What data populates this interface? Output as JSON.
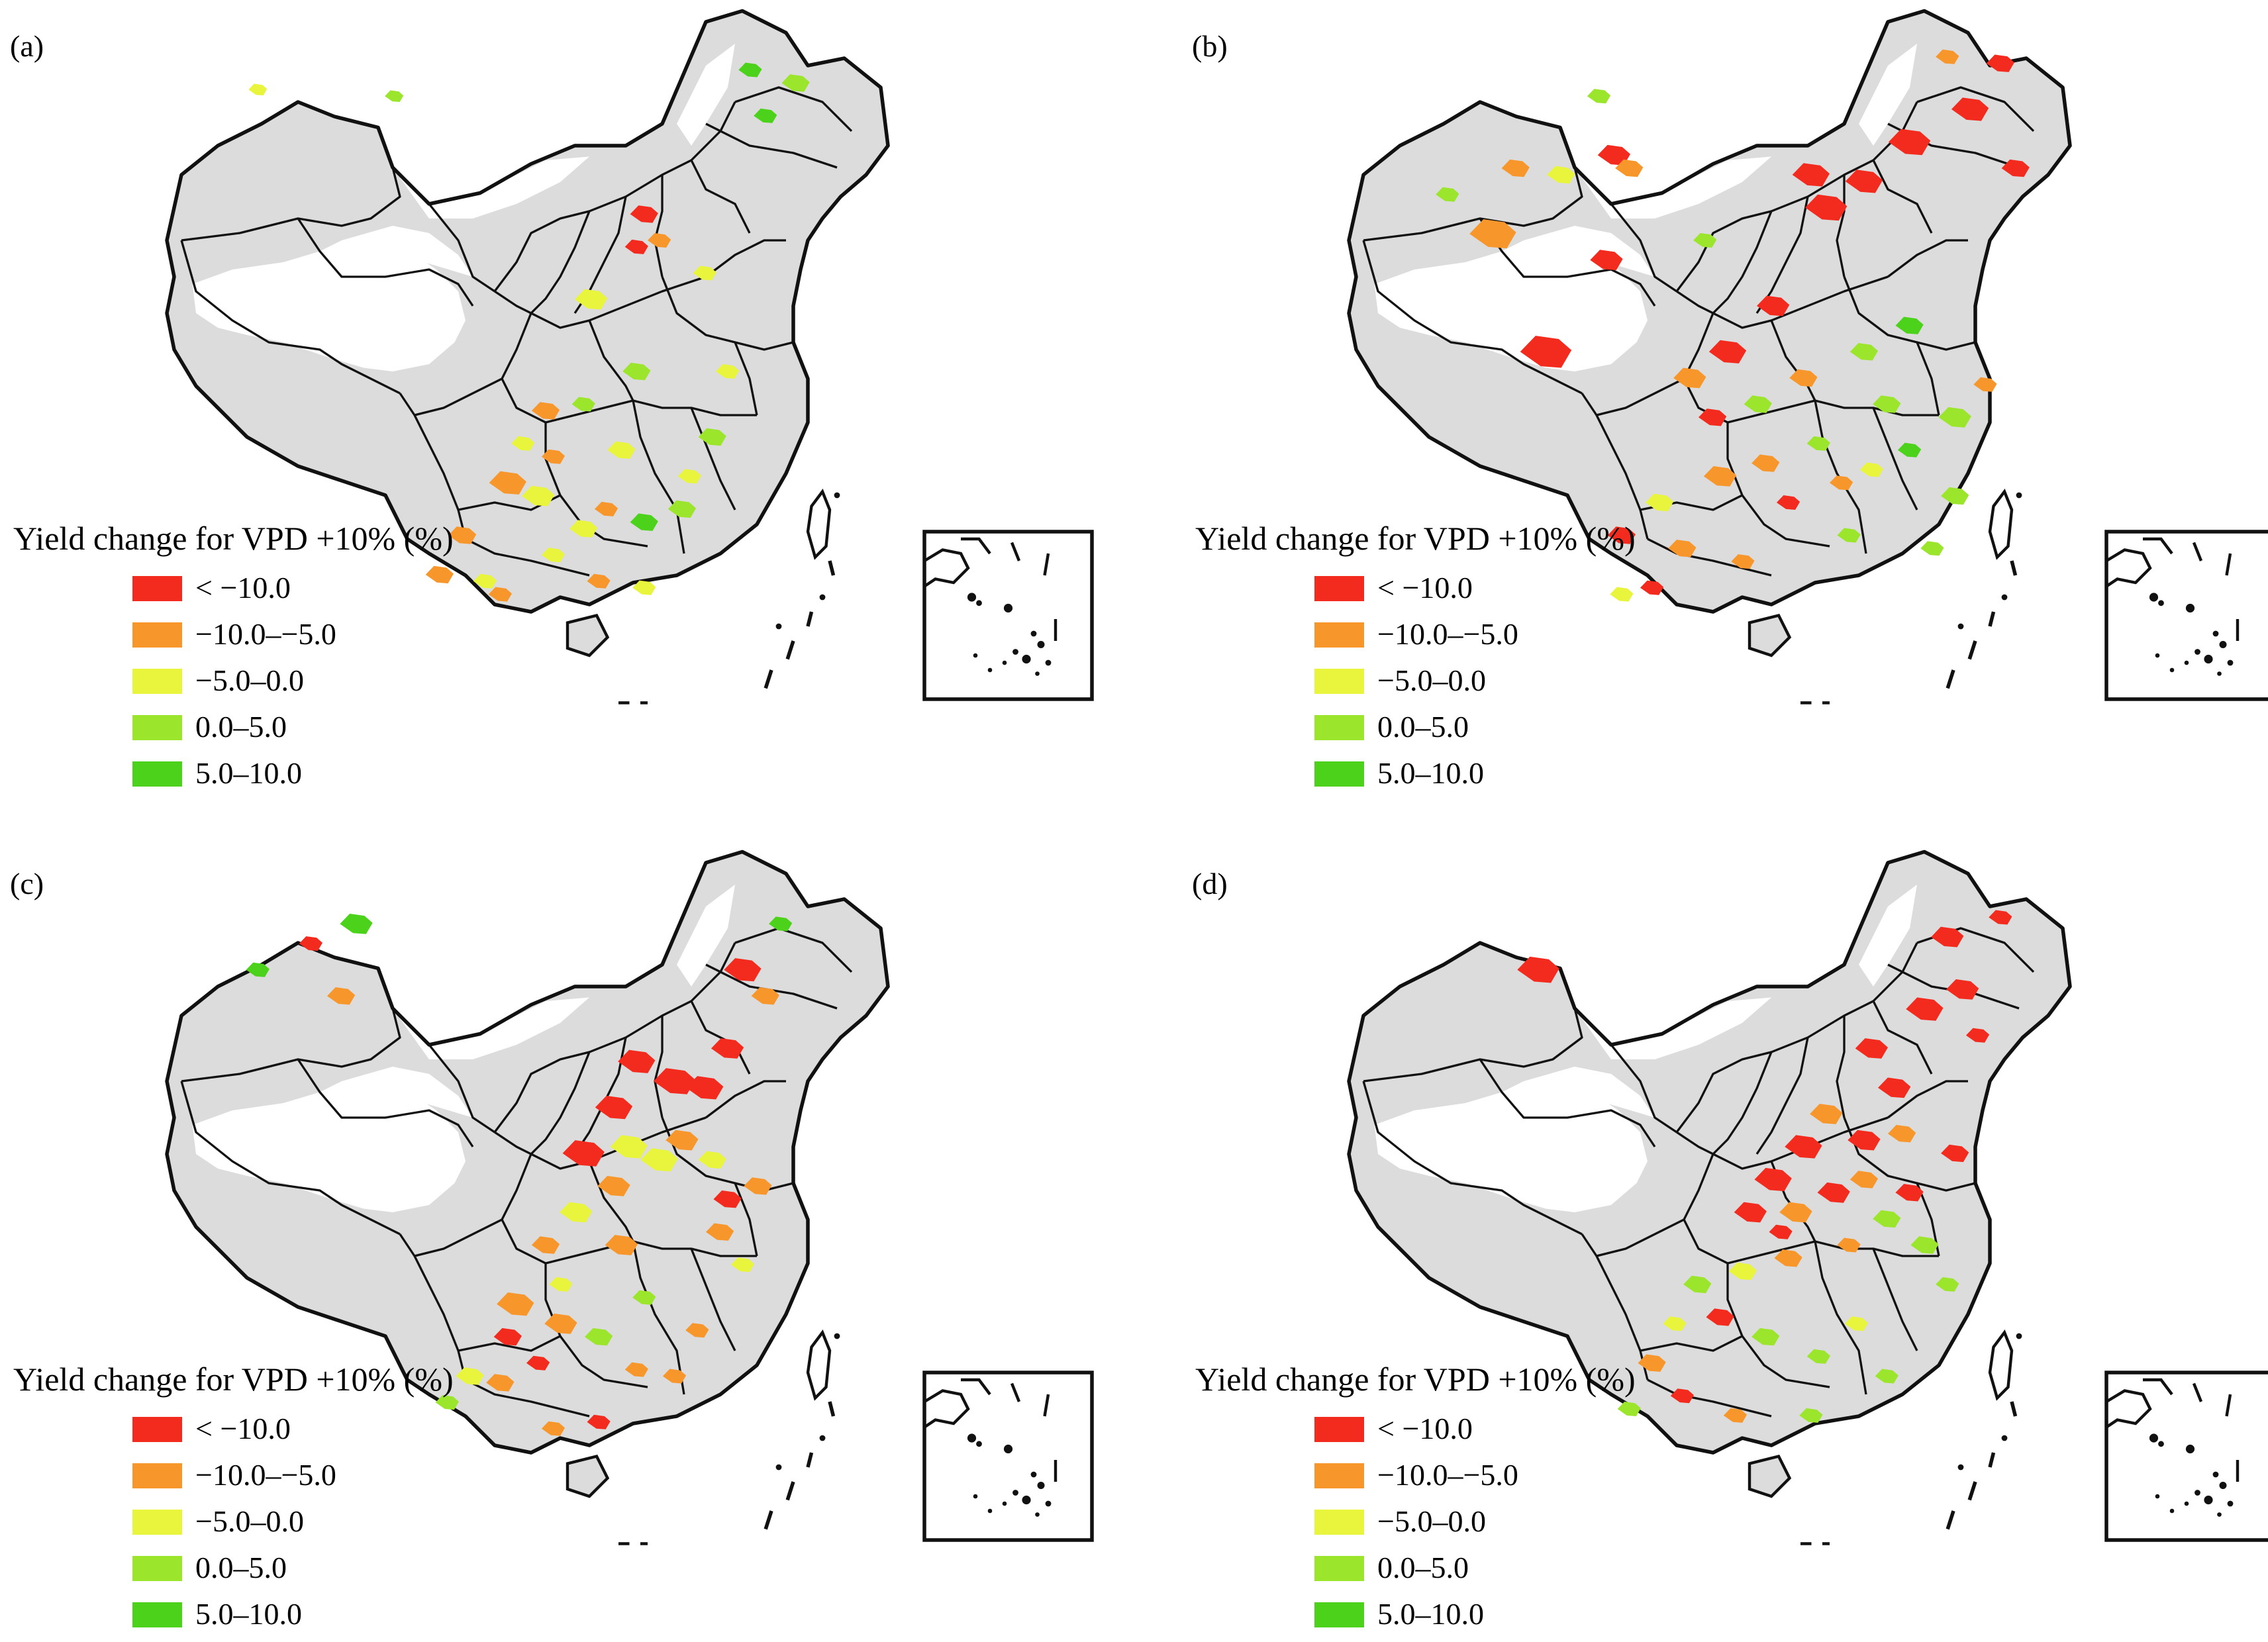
{
  "legend": {
    "title": "Yield change for VPD +10% (%)",
    "classes": [
      {
        "label": "< −10.0",
        "color": "#f22b1e"
      },
      {
        "label": "−10.0–−5.0",
        "color": "#f7962b"
      },
      {
        "label": "−5.0–0.0",
        "color": "#e8f53c"
      },
      {
        "label": "0.0–5.0",
        "color": "#9be52c"
      },
      {
        "label": "5.0–10.0",
        "color": "#4cd21a"
      }
    ]
  },
  "base_colors": {
    "cropland": "#dcdcdc",
    "outline": "#111111",
    "background": "#ffffff"
  },
  "panels": [
    {
      "label": "(a)",
      "patches": [
        [
          0.12,
          0.12,
          2,
          8
        ],
        [
          0.3,
          0.13,
          3,
          8
        ],
        [
          0.77,
          0.09,
          4,
          10
        ],
        [
          0.83,
          0.11,
          3,
          12
        ],
        [
          0.79,
          0.16,
          4,
          10
        ],
        [
          0.62,
          0.36,
          0,
          10
        ],
        [
          0.65,
          0.35,
          1,
          10
        ],
        [
          0.63,
          0.31,
          0,
          12
        ],
        [
          0.71,
          0.4,
          2,
          10
        ],
        [
          0.56,
          0.44,
          2,
          14
        ],
        [
          0.62,
          0.55,
          3,
          12
        ],
        [
          0.5,
          0.61,
          1,
          12
        ],
        [
          0.47,
          0.66,
          2,
          10
        ],
        [
          0.45,
          0.72,
          1,
          16
        ],
        [
          0.49,
          0.74,
          2,
          14
        ],
        [
          0.58,
          0.76,
          1,
          10
        ],
        [
          0.63,
          0.78,
          4,
          12
        ],
        [
          0.68,
          0.76,
          3,
          12
        ],
        [
          0.51,
          0.83,
          2,
          10
        ],
        [
          0.55,
          0.79,
          2,
          12
        ],
        [
          0.39,
          0.8,
          1,
          12
        ],
        [
          0.42,
          0.87,
          2,
          10
        ],
        [
          0.44,
          0.89,
          1,
          10
        ],
        [
          0.63,
          0.88,
          2,
          10
        ],
        [
          0.72,
          0.65,
          3,
          12
        ],
        [
          0.69,
          0.71,
          2,
          10
        ],
        [
          0.55,
          0.6,
          3,
          10
        ],
        [
          0.36,
          0.86,
          1,
          12
        ],
        [
          0.57,
          0.87,
          1,
          10
        ],
        [
          0.74,
          0.55,
          2,
          10
        ],
        [
          0.6,
          0.67,
          2,
          12
        ],
        [
          0.51,
          0.68,
          1,
          10
        ]
      ]
    },
    {
      "label": "(b)",
      "patches": [
        [
          0.19,
          0.34,
          1,
          20
        ],
        [
          0.13,
          0.28,
          3,
          10
        ],
        [
          0.22,
          0.24,
          1,
          12
        ],
        [
          0.28,
          0.25,
          2,
          12
        ],
        [
          0.33,
          0.13,
          3,
          10
        ],
        [
          0.35,
          0.22,
          0,
          14
        ],
        [
          0.37,
          0.24,
          1,
          12
        ],
        [
          0.26,
          0.52,
          0,
          22
        ],
        [
          0.34,
          0.38,
          0,
          14
        ],
        [
          0.61,
          0.25,
          0,
          16
        ],
        [
          0.63,
          0.3,
          0,
          18
        ],
        [
          0.68,
          0.26,
          0,
          16
        ],
        [
          0.74,
          0.2,
          0,
          18
        ],
        [
          0.82,
          0.15,
          0,
          16
        ],
        [
          0.86,
          0.08,
          0,
          12
        ],
        [
          0.79,
          0.07,
          1,
          10
        ],
        [
          0.88,
          0.24,
          0,
          12
        ],
        [
          0.56,
          0.45,
          0,
          14
        ],
        [
          0.5,
          0.52,
          0,
          16
        ],
        [
          0.45,
          0.56,
          1,
          14
        ],
        [
          0.48,
          0.62,
          0,
          12
        ],
        [
          0.54,
          0.6,
          3,
          12
        ],
        [
          0.6,
          0.56,
          1,
          12
        ],
        [
          0.68,
          0.52,
          3,
          12
        ],
        [
          0.74,
          0.48,
          4,
          12
        ],
        [
          0.8,
          0.62,
          3,
          14
        ],
        [
          0.74,
          0.67,
          4,
          10
        ],
        [
          0.8,
          0.74,
          3,
          12
        ],
        [
          0.69,
          0.7,
          2,
          10
        ],
        [
          0.62,
          0.66,
          3,
          10
        ],
        [
          0.58,
          0.75,
          0,
          10
        ],
        [
          0.49,
          0.71,
          1,
          14
        ],
        [
          0.41,
          0.75,
          2,
          12
        ],
        [
          0.44,
          0.82,
          1,
          12
        ],
        [
          0.36,
          0.8,
          0,
          12
        ],
        [
          0.4,
          0.88,
          0,
          10
        ],
        [
          0.36,
          0.89,
          2,
          10
        ],
        [
          0.52,
          0.84,
          1,
          10
        ],
        [
          0.66,
          0.8,
          3,
          10
        ],
        [
          0.77,
          0.82,
          3,
          10
        ],
        [
          0.84,
          0.57,
          1,
          10
        ],
        [
          0.71,
          0.6,
          3,
          12
        ],
        [
          0.55,
          0.69,
          1,
          12
        ],
        [
          0.65,
          0.72,
          1,
          10
        ],
        [
          0.47,
          0.35,
          3,
          10
        ]
      ]
    },
    {
      "label": "(c)",
      "patches": [
        [
          0.23,
          0.22,
          1,
          12
        ],
        [
          0.25,
          0.11,
          4,
          14
        ],
        [
          0.12,
          0.18,
          4,
          10
        ],
        [
          0.19,
          0.14,
          0,
          10
        ],
        [
          0.81,
          0.11,
          4,
          10
        ],
        [
          0.76,
          0.18,
          0,
          16
        ],
        [
          0.79,
          0.22,
          1,
          12
        ],
        [
          0.62,
          0.32,
          0,
          16
        ],
        [
          0.67,
          0.35,
          0,
          18
        ],
        [
          0.71,
          0.36,
          0,
          16
        ],
        [
          0.74,
          0.3,
          0,
          14
        ],
        [
          0.59,
          0.39,
          0,
          16
        ],
        [
          0.61,
          0.45,
          2,
          16
        ],
        [
          0.55,
          0.46,
          0,
          18
        ],
        [
          0.59,
          0.51,
          1,
          14
        ],
        [
          0.54,
          0.55,
          2,
          14
        ],
        [
          0.65,
          0.47,
          2,
          16
        ],
        [
          0.68,
          0.44,
          1,
          14
        ],
        [
          0.72,
          0.47,
          2,
          12
        ],
        [
          0.74,
          0.53,
          0,
          12
        ],
        [
          0.73,
          0.58,
          1,
          12
        ],
        [
          0.78,
          0.51,
          1,
          12
        ],
        [
          0.6,
          0.6,
          1,
          14
        ],
        [
          0.5,
          0.6,
          1,
          12
        ],
        [
          0.46,
          0.69,
          1,
          16
        ],
        [
          0.45,
          0.74,
          0,
          12
        ],
        [
          0.4,
          0.8,
          2,
          12
        ],
        [
          0.44,
          0.81,
          1,
          12
        ],
        [
          0.37,
          0.84,
          3,
          10
        ],
        [
          0.52,
          0.72,
          1,
          14
        ],
        [
          0.57,
          0.74,
          3,
          12
        ],
        [
          0.62,
          0.79,
          1,
          10
        ],
        [
          0.67,
          0.8,
          1,
          10
        ],
        [
          0.7,
          0.73,
          1,
          10
        ],
        [
          0.51,
          0.88,
          1,
          10
        ],
        [
          0.57,
          0.87,
          0,
          10
        ],
        [
          0.63,
          0.68,
          3,
          10
        ],
        [
          0.76,
          0.63,
          2,
          10
        ],
        [
          0.52,
          0.66,
          2,
          10
        ],
        [
          0.49,
          0.78,
          0,
          10
        ]
      ]
    },
    {
      "label": "(d)",
      "patches": [
        [
          0.25,
          0.18,
          0,
          18
        ],
        [
          0.79,
          0.13,
          0,
          14
        ],
        [
          0.81,
          0.21,
          0,
          14
        ],
        [
          0.76,
          0.24,
          0,
          16
        ],
        [
          0.69,
          0.3,
          0,
          14
        ],
        [
          0.72,
          0.36,
          0,
          14
        ],
        [
          0.73,
          0.43,
          1,
          12
        ],
        [
          0.68,
          0.44,
          0,
          14
        ],
        [
          0.63,
          0.4,
          1,
          14
        ],
        [
          0.6,
          0.45,
          0,
          16
        ],
        [
          0.56,
          0.5,
          0,
          16
        ],
        [
          0.53,
          0.55,
          0,
          14
        ],
        [
          0.59,
          0.55,
          1,
          14
        ],
        [
          0.64,
          0.52,
          0,
          14
        ],
        [
          0.68,
          0.5,
          1,
          12
        ],
        [
          0.74,
          0.52,
          0,
          12
        ],
        [
          0.8,
          0.46,
          0,
          12
        ],
        [
          0.71,
          0.56,
          3,
          12
        ],
        [
          0.76,
          0.6,
          3,
          12
        ],
        [
          0.79,
          0.66,
          3,
          10
        ],
        [
          0.58,
          0.62,
          1,
          12
        ],
        [
          0.52,
          0.64,
          2,
          12
        ],
        [
          0.46,
          0.66,
          3,
          12
        ],
        [
          0.49,
          0.71,
          0,
          12
        ],
        [
          0.43,
          0.72,
          2,
          10
        ],
        [
          0.4,
          0.78,
          1,
          12
        ],
        [
          0.37,
          0.85,
          3,
          10
        ],
        [
          0.44,
          0.83,
          0,
          10
        ],
        [
          0.55,
          0.74,
          3,
          12
        ],
        [
          0.62,
          0.77,
          3,
          10
        ],
        [
          0.67,
          0.72,
          2,
          10
        ],
        [
          0.71,
          0.8,
          3,
          10
        ],
        [
          0.51,
          0.86,
          1,
          10
        ],
        [
          0.61,
          0.86,
          3,
          10
        ],
        [
          0.83,
          0.28,
          0,
          10
        ],
        [
          0.86,
          0.1,
          0,
          10
        ],
        [
          0.66,
          0.6,
          1,
          10
        ],
        [
          0.57,
          0.58,
          0,
          10
        ]
      ]
    }
  ]
}
